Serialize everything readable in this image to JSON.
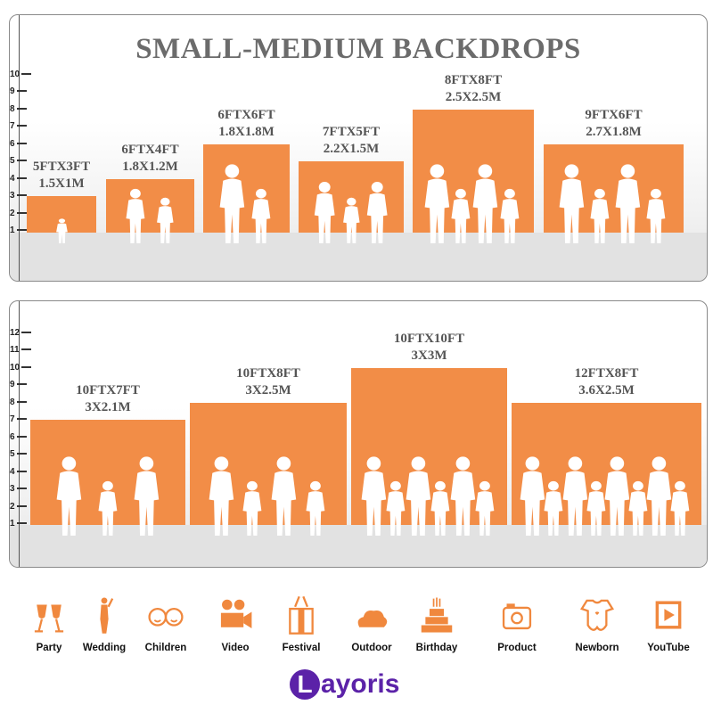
{
  "title": "SMALL-MEDIUM BACKDROPS",
  "colors": {
    "bar": "#f28d47",
    "title": "#6b6b6b",
    "icon": "#f0883e",
    "brand": "#5b22a8"
  },
  "panel1": {
    "axis_ticks": [
      "1",
      "2",
      "3",
      "4",
      "5",
      "6",
      "7",
      "8",
      "9",
      "10"
    ],
    "sizes": [
      {
        "ft": "5FTX3FT",
        "m": "1.5X1M",
        "width_ft": 5,
        "height_ft": 3
      },
      {
        "ft": "6FTX4FT",
        "m": "1.8X1.2M",
        "width_ft": 6,
        "height_ft": 4
      },
      {
        "ft": "6FTX6FT",
        "m": "1.8X1.8M",
        "width_ft": 6,
        "height_ft": 6
      },
      {
        "ft": "7FTX5FT",
        "m": "2.2X1.5M",
        "width_ft": 7,
        "height_ft": 5
      },
      {
        "ft": "8FTX8FT",
        "m": "2.5X2.5M",
        "width_ft": 8,
        "height_ft": 8
      },
      {
        "ft": "9FTX6FT",
        "m": "2.7X1.8M",
        "width_ft": 9,
        "height_ft": 6
      }
    ]
  },
  "panel2": {
    "axis_ticks": [
      "1",
      "2",
      "3",
      "4",
      "5",
      "6",
      "7",
      "8",
      "9",
      "10",
      "11",
      "12"
    ],
    "watermark": "layoris",
    "sizes": [
      {
        "ft": "10FTX7FT",
        "m": "3X2.1M",
        "width_ft": 10,
        "height_ft": 7
      },
      {
        "ft": "10FTX8FT",
        "m": "3X2.5M",
        "width_ft": 10,
        "height_ft": 8
      },
      {
        "ft": "10FTX10FT",
        "m": "3X3M",
        "width_ft": 10,
        "height_ft": 10
      },
      {
        "ft": "12FTX8FT",
        "m": "3.6X2.5M",
        "width_ft": 12,
        "height_ft": 8
      }
    ]
  },
  "categories": [
    {
      "label": "Party",
      "icon": "champagne-glasses-icon"
    },
    {
      "label": "Wedding",
      "icon": "wedding-couple-icon"
    },
    {
      "label": "Children",
      "icon": "children-faces-icon"
    },
    {
      "label": "Video",
      "icon": "video-camera-icon"
    },
    {
      "label": "Festival",
      "icon": "gift-box-icon"
    },
    {
      "label": "Outdoor",
      "icon": "cloud-icon"
    },
    {
      "label": "Birthday",
      "icon": "birthday-cake-icon"
    },
    {
      "label": "Product",
      "icon": "camera-icon"
    },
    {
      "label": "Newborn",
      "icon": "baby-onesie-icon"
    },
    {
      "label": "YouTube",
      "icon": "play-button-icon"
    }
  ],
  "brand": {
    "initial": "L",
    "rest": "ayoris"
  }
}
